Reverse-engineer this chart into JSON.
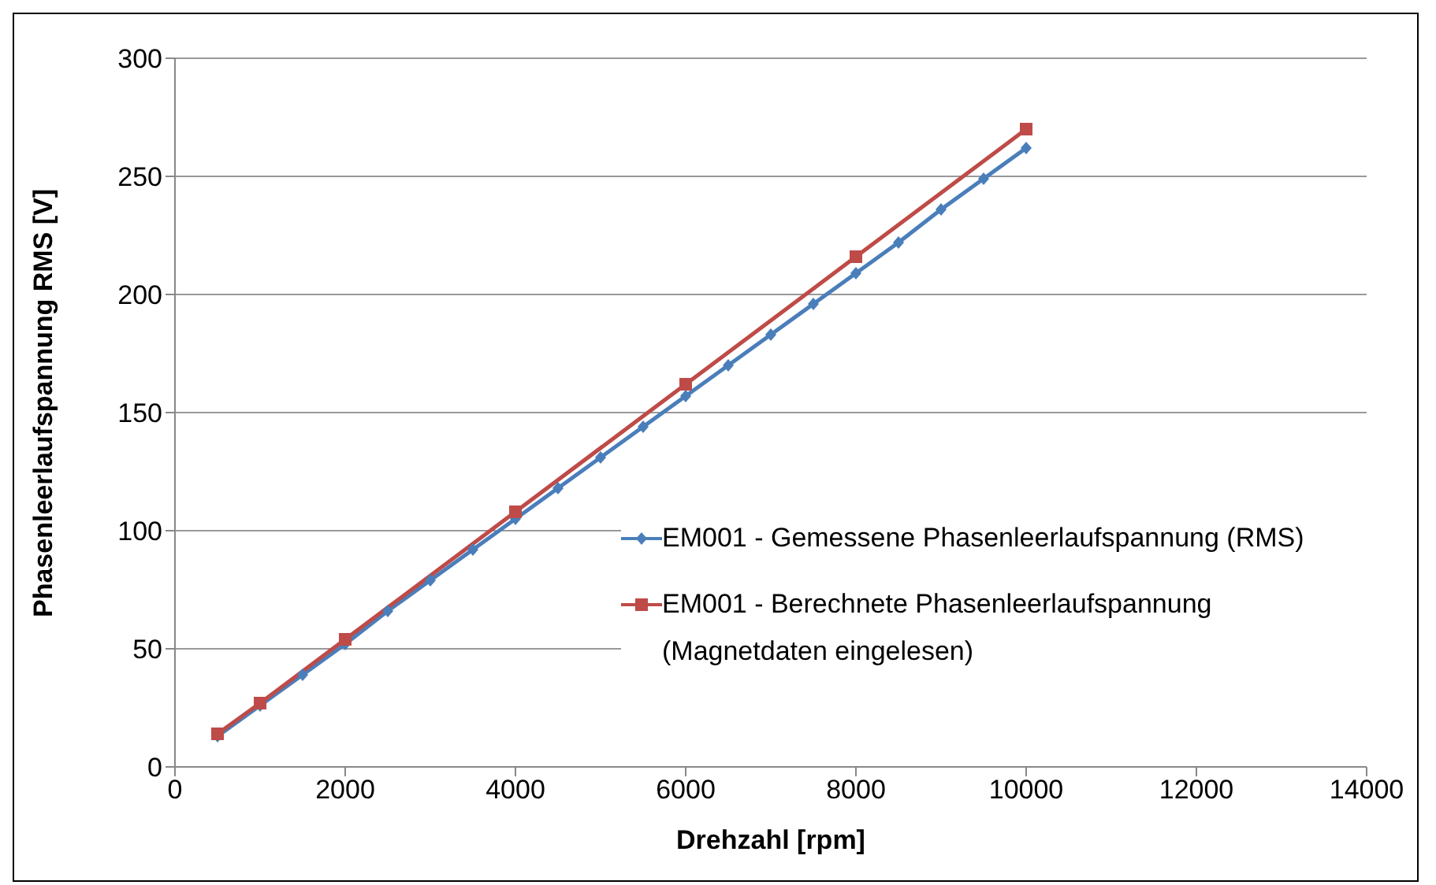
{
  "chart_data": {
    "type": "line",
    "xlabel": "Drehzahl [rpm]",
    "ylabel": "Phasenleerlaufspannung RMS [V]",
    "xlim": [
      0,
      14000
    ],
    "xticks": [
      0,
      2000,
      4000,
      6000,
      8000,
      10000,
      12000,
      14000
    ],
    "ylim": [
      0,
      300
    ],
    "yticks": [
      0,
      50,
      100,
      150,
      200,
      250,
      300
    ],
    "grid": "y",
    "legend": "right",
    "line_style": "solid",
    "series": [
      {
        "name": "EM001 - Gemessene Phasenleerlaufspannung (RMS)",
        "color": "#4a7ebb",
        "marker": "diamond",
        "x": [
          500,
          1000,
          1500,
          2000,
          2500,
          3000,
          3500,
          4000,
          4500,
          5000,
          5500,
          6000,
          6500,
          7000,
          7500,
          8000,
          8500,
          9000,
          9500,
          10000
        ],
        "values": [
          13,
          26,
          39,
          52,
          66,
          79,
          92,
          105,
          118,
          131,
          144,
          157,
          170,
          183,
          196,
          209,
          222,
          236,
          249,
          262
        ]
      },
      {
        "name": "EM001 - Berechnete Phasenleerlaufspannung (Magnetdaten eingelesen)",
        "color": "#be4b48",
        "marker": "square",
        "x": [
          500,
          1000,
          2000,
          4000,
          6000,
          8000,
          10000
        ],
        "values": [
          14,
          27,
          54,
          108,
          162,
          216,
          270
        ]
      }
    ]
  }
}
